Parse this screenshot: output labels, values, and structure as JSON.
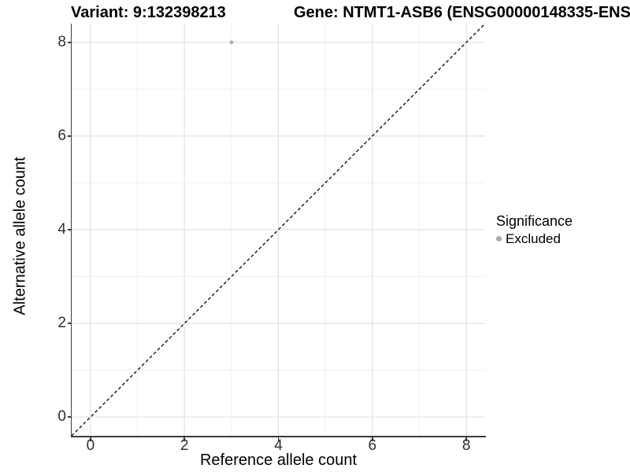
{
  "chart_data": {
    "type": "scatter",
    "title_left": "Variant: 9:132398213",
    "title_right": "Gene: NTMT1-ASB6 (ENSG00000148335-ENS",
    "xlabel": "Reference allele count",
    "ylabel": "Alternative allele count",
    "xlim": [
      -0.4,
      8.4
    ],
    "ylim": [
      -0.4,
      8.4
    ],
    "x_ticks": [
      0,
      2,
      4,
      6,
      8
    ],
    "y_ticks": [
      0,
      2,
      4,
      6,
      8
    ],
    "x_minor_ticks": [
      1,
      3,
      5,
      7
    ],
    "y_minor_ticks": [
      1,
      3,
      5,
      7
    ],
    "grid": "major-and-minor",
    "series": [
      {
        "name": "Excluded",
        "color": "#acacac",
        "points": [
          {
            "x": 3,
            "y": 8
          }
        ]
      }
    ],
    "identity_line": {
      "slope": 1,
      "intercept": 0,
      "style": "dashed",
      "color": "#000000"
    },
    "legend": {
      "title": "Significance",
      "position": "right",
      "entries": [
        {
          "label": "Excluded",
          "color": "#acacac",
          "marker": "circle"
        }
      ]
    }
  },
  "colors": {
    "background": "#ffffff",
    "grid_major": "#e2e2e2",
    "grid_minor": "#f0f0f0",
    "axis_line": "#3c3c3c",
    "tick_label": "#303030",
    "dashed_line": "#000000",
    "point": "#acacac"
  }
}
